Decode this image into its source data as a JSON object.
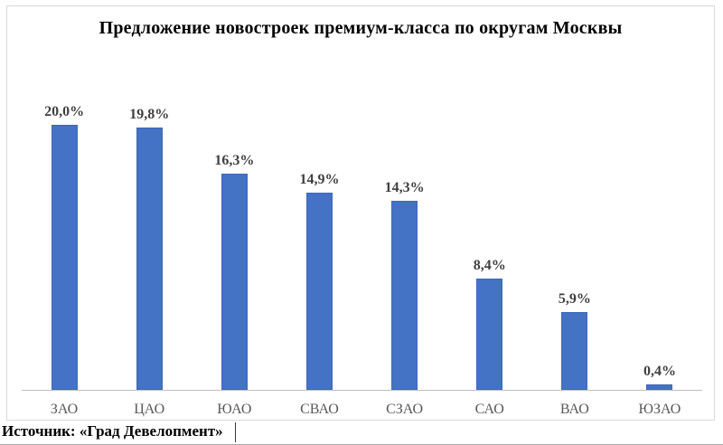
{
  "title": "Предложение новостроек премиум-класса по округам Москвы",
  "source": {
    "label": "Источник: «Град Девелопмент»"
  },
  "chart_data": {
    "type": "bar",
    "title": "Предложение новостроек премиум-класса по округам Москвы",
    "categories": [
      "ЗАО",
      "ЦАО",
      "ЮАО",
      "СВАО",
      "СЗАО",
      "САО",
      "ВАО",
      "ЮЗАО"
    ],
    "values": [
      20.0,
      19.8,
      16.3,
      14.9,
      14.3,
      8.4,
      5.9,
      0.4
    ],
    "value_labels": [
      "20,0%",
      "19,8%",
      "16,3%",
      "14,9%",
      "14,3%",
      "8,4%",
      "5,9%",
      "0,4%"
    ],
    "xlabel": "",
    "ylabel": "",
    "ylim": [
      0,
      21
    ],
    "grid": false,
    "legend": false,
    "annotation": "value labels shown above each bar, percent with comma decimal"
  },
  "colors": {
    "bar": "#4472C4",
    "bar_border": "#3E69B8",
    "frame_border": "#D9D9D9",
    "axis_line": "#BFBFBF",
    "category_label": "#595959",
    "value_label": "#3F3F3F",
    "title": "#000000",
    "source_text": "#000000"
  }
}
